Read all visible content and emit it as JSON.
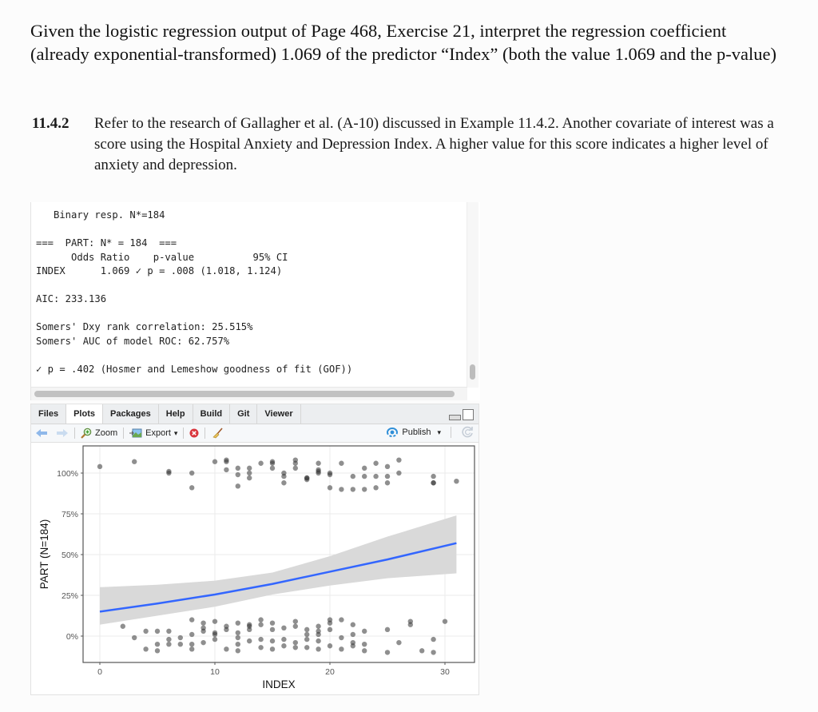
{
  "question": {
    "text": "Given the logistic regression output of Page 468, Exercise 21, interpret the regression coefficient (already exponential-transformed) 1.069 of the predictor “Index” (both the value 1.069 and the p-value)"
  },
  "problem": {
    "number": "11.4.2",
    "text": "Refer to the research of Gallagher et al. (A-10) discussed in Example 11.4.2. Another covariate of interest was a score using the Hospital Anxiety and Depression Index. A higher value for this score indicates a higher level of anxiety and depression."
  },
  "console": {
    "lines": [
      "   Binary resp. N*=184",
      "",
      "===  PART: N* = 184  ===",
      "      Odds Ratio    p-value          95% CI",
      "INDEX      1.069 ✓ p = .008 (1.018, 1.124)",
      "",
      "AIC: 233.136",
      "",
      "Somers' Dxy rank correlation: 25.515%",
      "Somers' AUC of model ROC: 62.757%",
      "",
      "✓ p = .402 (Hosmer and Lemeshow goodness of fit (GOF))"
    ]
  },
  "panel": {
    "tabs": [
      {
        "label": "Files",
        "active": false
      },
      {
        "label": "Plots",
        "active": true
      },
      {
        "label": "Packages",
        "active": false
      },
      {
        "label": "Help",
        "active": false
      },
      {
        "label": "Build",
        "active": false
      },
      {
        "label": "Git",
        "active": false
      },
      {
        "label": "Viewer",
        "active": false
      }
    ],
    "toolbar": {
      "back_icon": "arrow-left-icon",
      "forward_icon": "arrow-right-icon",
      "zoom_label": "Zoom",
      "export_label": "Export",
      "export_caret": "▾",
      "remove_icon": "remove-plot-icon",
      "clear_icon": "broom-icon",
      "publish_label": "Publish",
      "publish_caret": "▾",
      "refresh_icon": "refresh-icon"
    }
  },
  "colors": {
    "fit_line": "#3366ff",
    "ci_band": "#d9d9d9",
    "points": "#333333"
  },
  "chart_data": {
    "type": "scatter",
    "title": "",
    "xlabel": "INDEX",
    "ylabel": "PART (N=184)",
    "x_ticks": [
      "0",
      "10",
      "20",
      "30"
    ],
    "y_ticks": [
      "0%",
      "25%",
      "50%",
      "75%",
      "100%"
    ],
    "xlim": [
      -1.5,
      32.5
    ],
    "ylim": [
      -0.11,
      1.12
    ],
    "grid": true,
    "legend": "none",
    "fit_line": {
      "x": [
        0,
        5,
        10,
        15,
        20,
        25,
        31
      ],
      "y": [
        0.15,
        0.2,
        0.255,
        0.32,
        0.395,
        0.47,
        0.57
      ]
    },
    "ci_band": {
      "x": [
        0,
        5,
        10,
        15,
        20,
        25,
        31
      ],
      "lower": [
        0.07,
        0.125,
        0.18,
        0.255,
        0.31,
        0.355,
        0.385
      ],
      "upper": [
        0.3,
        0.315,
        0.34,
        0.39,
        0.49,
        0.61,
        0.74
      ]
    },
    "points_y1": {
      "note": "jittered observations with PART = 1",
      "x": [
        0,
        3,
        6,
        6,
        8,
        8,
        10,
        11,
        11,
        11,
        12,
        12,
        12,
        13,
        13,
        13,
        14,
        15,
        15,
        15,
        16,
        16,
        16,
        17,
        17,
        17,
        18,
        18,
        18,
        19,
        19,
        19,
        19,
        20,
        20,
        20,
        21,
        21,
        22,
        22,
        23,
        23,
        23,
        24,
        24,
        24,
        25,
        25,
        25,
        26,
        26,
        29,
        29,
        29,
        31
      ],
      "y": [
        1.04,
        1.07,
        1.0,
        1.01,
        1.0,
        0.91,
        1.07,
        1.08,
        1.07,
        1.02,
        1.03,
        0.99,
        0.92,
        1.03,
        1.0,
        0.97,
        1.06,
        1.06,
        1.07,
        1.03,
        1.0,
        0.98,
        0.94,
        1.06,
        1.08,
        1.03,
        0.96,
        0.97,
        0.97,
        1.0,
        1.02,
        1.01,
        1.06,
        1.0,
        0.99,
        0.91,
        0.9,
        1.06,
        0.98,
        0.9,
        1.03,
        0.98,
        0.9,
        0.98,
        0.91,
        1.06,
        1.04,
        0.98,
        0.94,
        1.08,
        1.0,
        0.98,
        0.94,
        0.94,
        0.95
      ]
    },
    "points_y0": {
      "note": "jittered observations with PART = 0",
      "x": [
        2,
        3,
        4,
        4,
        5,
        5,
        5,
        6,
        6,
        6,
        7,
        7,
        8,
        8,
        8,
        8,
        9,
        9,
        9,
        9,
        10,
        10,
        10,
        10,
        11,
        11,
        11,
        12,
        12,
        12,
        12,
        12,
        13,
        13,
        13,
        13,
        14,
        14,
        14,
        14,
        15,
        15,
        15,
        15,
        16,
        16,
        16,
        17,
        17,
        17,
        17,
        18,
        18,
        18,
        18,
        19,
        19,
        19,
        19,
        19,
        20,
        20,
        20,
        20,
        21,
        21,
        21,
        22,
        22,
        22,
        22,
        23,
        23,
        23,
        25,
        25,
        26,
        27,
        27,
        28,
        29,
        29,
        30
      ],
      "y": [
        0.06,
        -0.01,
        0.03,
        -0.08,
        0.03,
        -0.05,
        -0.09,
        0.03,
        -0.02,
        -0.05,
        -0.01,
        -0.05,
        0.1,
        0.01,
        -0.05,
        -0.08,
        0.05,
        0.03,
        -0.04,
        0.08,
        0.09,
        0.02,
        -0.02,
        0.01,
        0.06,
        0.04,
        -0.08,
        0.08,
        0.02,
        -0.01,
        -0.05,
        -0.09,
        0.07,
        0.04,
        0.06,
        -0.03,
        0.1,
        0.07,
        -0.02,
        -0.07,
        0.08,
        0.04,
        -0.03,
        -0.08,
        0.05,
        -0.02,
        -0.06,
        0.06,
        0.09,
        -0.04,
        -0.07,
        0.04,
        0.01,
        -0.02,
        -0.07,
        0.06,
        -0.03,
        -0.08,
        0.01,
        0.03,
        0.1,
        0.08,
        0.04,
        -0.06,
        0.1,
        -0.01,
        -0.08,
        0.07,
        0.01,
        -0.04,
        -0.06,
        0.03,
        -0.05,
        -0.09,
        0.04,
        -0.1,
        -0.04,
        0.07,
        0.09,
        -0.09,
        -0.1,
        -0.02,
        0.09
      ]
    }
  }
}
